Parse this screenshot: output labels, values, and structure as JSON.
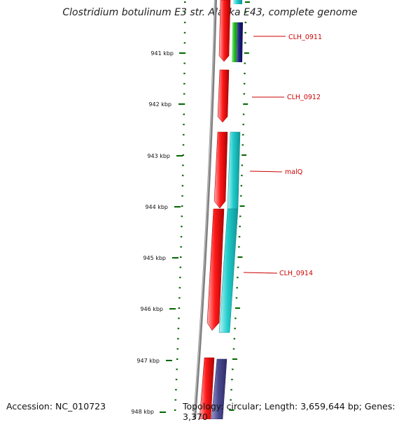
{
  "title": "Clostridium botulinum E3 str. Alaska E43, complete genome",
  "footer": {
    "accession": "Accession: NC_010723",
    "stats": "Topology: circular; Length: 3,659,644 bp; Genes: 3,370"
  },
  "ticks": [
    {
      "kbp": 941,
      "label": "941 kbp"
    },
    {
      "kbp": 942,
      "label": "942 kbp"
    },
    {
      "kbp": 943,
      "label": "943 kbp"
    },
    {
      "kbp": 944,
      "label": "944 kbp"
    },
    {
      "kbp": 945,
      "label": "945 kbp"
    },
    {
      "kbp": 946,
      "label": "946 kbp"
    },
    {
      "kbp": 947,
      "label": "947 kbp"
    },
    {
      "kbp": 948,
      "label": "948 kbp"
    }
  ],
  "genes": [
    {
      "label": "CLH_0911"
    },
    {
      "label": "CLH_0912"
    },
    {
      "label": "malQ"
    },
    {
      "label": "CLH_0914"
    }
  ],
  "colors": {
    "cds": "#ee0000",
    "cyan_feature": "#1cc6c6",
    "green_feature": "#22bb22",
    "navy_feature": "#1a1a7a",
    "purple_feature": "#4b4a8f",
    "backbone": "#808080",
    "ticks": "#006600",
    "label_line": "#cc0000"
  }
}
